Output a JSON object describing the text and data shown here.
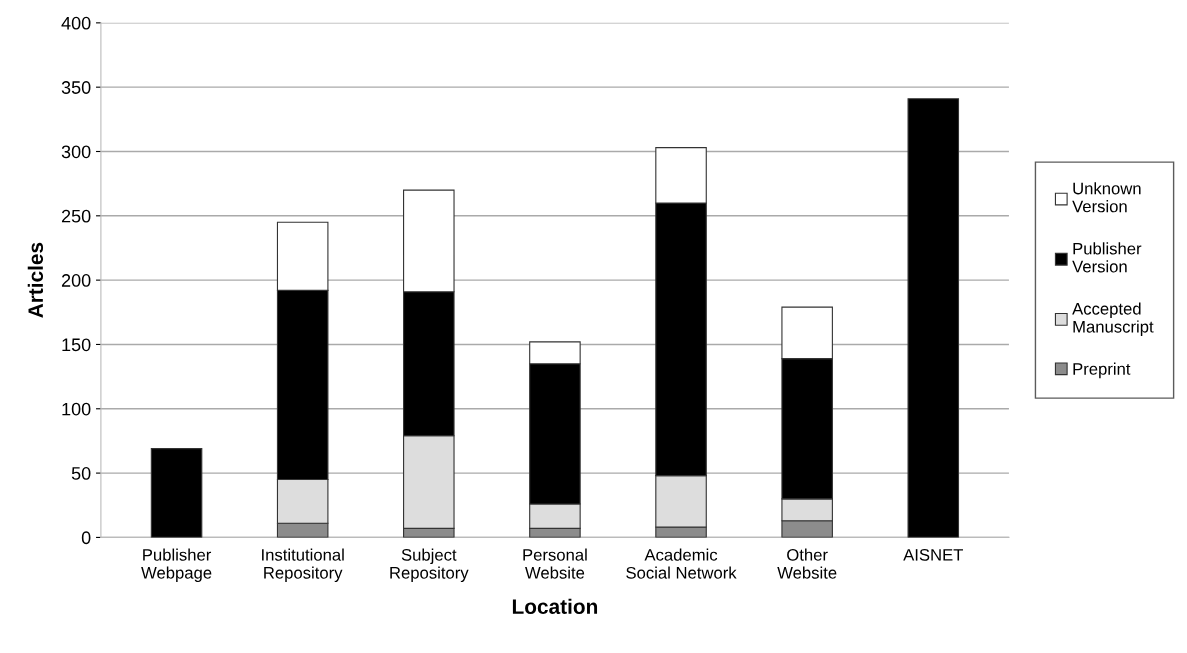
{
  "chart_data": {
    "type": "bar",
    "stacked": true,
    "xlabel": "Location",
    "ylabel": "Articles",
    "categories": [
      "Publisher\nWebpage",
      "Institutional\nRepository",
      "Subject\nRepository",
      "Personal\nWebsite",
      "Academic\nSocial Network",
      "Other\nWebsite",
      "AISNET"
    ],
    "series": [
      {
        "name": "Preprint",
        "color": "#8c8c8c",
        "values": [
          0,
          11,
          7,
          7,
          8,
          13,
          0
        ]
      },
      {
        "name": "Accepted\nManuscript",
        "color": "#dddddd",
        "values": [
          0,
          34,
          72,
          19,
          40,
          17,
          0
        ]
      },
      {
        "name": "Publisher\nVersion",
        "color": "#000000",
        "values": [
          69,
          147,
          112,
          109,
          212,
          109,
          341
        ]
      },
      {
        "name": "Unknown\nVersion",
        "color": "#ffffff",
        "values": [
          0,
          53,
          79,
          17,
          43,
          40,
          0
        ]
      }
    ],
    "ylim": [
      0,
      400
    ],
    "yticks": [
      0,
      50,
      100,
      150,
      200,
      250,
      300,
      350,
      400
    ],
    "grid": "y",
    "legend": "right"
  }
}
